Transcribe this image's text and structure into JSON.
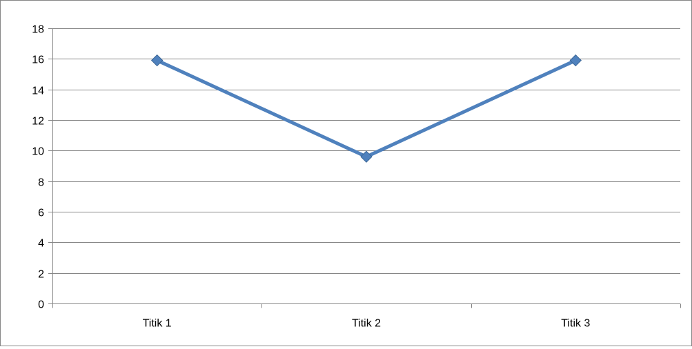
{
  "chart_data": {
    "type": "line",
    "categories": [
      "Titik 1",
      "Titik 2",
      "Titik 3"
    ],
    "series": [
      {
        "values": [
          15.9,
          9.6,
          15.9
        ],
        "color": "#4F81BD",
        "marker": "diamond"
      }
    ],
    "yticks": [
      0,
      2,
      4,
      6,
      8,
      10,
      12,
      14,
      16,
      18
    ],
    "ylim": [
      0,
      18
    ],
    "grid": true,
    "legend": "none",
    "gridline_color": "#868686",
    "axis_color": "#868686"
  }
}
